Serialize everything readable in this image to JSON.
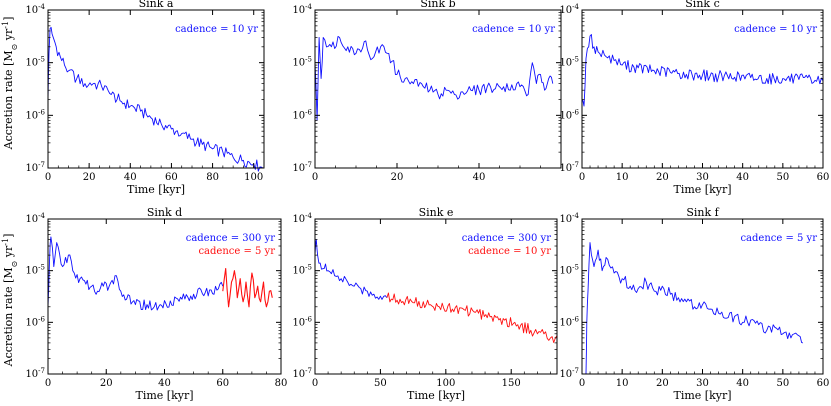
{
  "figure": {
    "ylabel_main": "Accretion rate [M",
    "ylabel_sun": "⊙",
    "ylabel_unit": " yr",
    "ylabel_exp": "-1",
    "ylabel_close": "]"
  },
  "chart_data": [
    {
      "type": "line",
      "title": "Sink a",
      "xlabel": "Time [kyr]",
      "xlim": [
        0,
        105
      ],
      "xticks": [
        0,
        20,
        40,
        60,
        80,
        100
      ],
      "yscale": "log",
      "ylim": [
        1e-07,
        0.0001
      ],
      "legend": [
        {
          "text": "cadence = 10 yr",
          "color": "#1010ff"
        }
      ],
      "series": [
        {
          "color": "#1010ff",
          "x": [
            0,
            0.5,
            1,
            2,
            4,
            6,
            8,
            10,
            14,
            18,
            22,
            26,
            30,
            35,
            40,
            45,
            50,
            55,
            60,
            65,
            70,
            75,
            80,
            85,
            90,
            95,
            100,
            103,
            104.5
          ],
          "y": [
            2e-06,
            1.5e-05,
            4.5e-05,
            3.5e-05,
            2e-05,
            1.3e-05,
            9e-06,
            7e-06,
            5e-06,
            4e-06,
            4e-06,
            3.6e-06,
            2.6e-06,
            1.9e-06,
            1.5e-06,
            1.2e-06,
            9e-07,
            7e-07,
            5.5e-07,
            4.5e-07,
            3.5e-07,
            2.8e-07,
            2.3e-07,
            2e-07,
            1.6e-07,
            1.4e-07,
            1.2e-07,
            1.05e-07,
            1e-07
          ]
        }
      ]
    },
    {
      "type": "line",
      "title": "Sink b",
      "xlabel": "",
      "xlim": [
        0,
        60
      ],
      "xticks": [
        0,
        20,
        40
      ],
      "yscale": "log",
      "ylim": [
        1e-07,
        0.0001
      ],
      "legend": [
        {
          "text": "cadence = 10 yr",
          "color": "#1010ff"
        }
      ],
      "series": [
        {
          "color": "#1010ff",
          "x": [
            0,
            0.5,
            1,
            1.5,
            2,
            4,
            6,
            8,
            10,
            12,
            14,
            16,
            18,
            20,
            22,
            24,
            26,
            28,
            30,
            32,
            34,
            36,
            38,
            40,
            42,
            44,
            46,
            48,
            50,
            52,
            53,
            54,
            55,
            56,
            57,
            58
          ],
          "y": [
            1e-05,
            8e-07,
            3e-05,
            5e-06,
            3e-05,
            2e-05,
            3e-05,
            2e-05,
            1.5e-05,
            2.5e-05,
            1.2e-05,
            2e-05,
            1.5e-05,
            6e-06,
            5e-06,
            4e-06,
            4e-06,
            3e-06,
            2.5e-06,
            3e-06,
            2.5e-06,
            2.8e-06,
            3e-06,
            3e-06,
            3.5e-06,
            3.2e-06,
            3.5e-06,
            3.8e-06,
            3.5e-06,
            2.5e-06,
            1e-05,
            4e-06,
            6e-06,
            3e-06,
            5e-06,
            4e-06
          ]
        }
      ]
    },
    {
      "type": "line",
      "title": "Sink c",
      "xlabel": "Time [kyr]",
      "xlim": [
        0,
        60
      ],
      "xticks": [
        0,
        10,
        20,
        30,
        40,
        50,
        60
      ],
      "yscale": "log",
      "ylim": [
        1e-07,
        0.0001
      ],
      "legend": [
        {
          "text": "cadence = 10 yr",
          "color": "#1010ff"
        }
      ],
      "series": [
        {
          "color": "#1010ff",
          "x": [
            0,
            0.5,
            1,
            2,
            3,
            4,
            6,
            8,
            10,
            14,
            18,
            22,
            26,
            30,
            34,
            38,
            42,
            46,
            50,
            54,
            58,
            60
          ],
          "y": [
            2e-06,
            1.5e-06,
            1.2e-05,
            3.2e-05,
            2e-05,
            1.6e-05,
            1.3e-05,
            1.1e-05,
            9e-06,
            8e-06,
            7e-06,
            6.5e-06,
            6e-06,
            5.8e-06,
            5.5e-06,
            5.3e-06,
            5.2e-06,
            5e-06,
            5e-06,
            4.8e-06,
            4.6e-06,
            4.5e-06
          ]
        }
      ]
    },
    {
      "type": "line",
      "title": "Sink d",
      "xlabel": "Time [kyr]",
      "xlim": [
        0,
        80
      ],
      "xticks": [
        0,
        20,
        40,
        60,
        80
      ],
      "yscale": "log",
      "ylim": [
        1e-07,
        0.0001
      ],
      "legend": [
        {
          "text": "cadence = 300 yr",
          "color": "#1010ff"
        },
        {
          "text": "cadence = 5 yr",
          "color": "#ff1010"
        }
      ],
      "series": [
        {
          "color": "#1010ff",
          "x": [
            0,
            0.5,
            1,
            2,
            3,
            5,
            7,
            9,
            11,
            13,
            15,
            17,
            19,
            21,
            23,
            25,
            27,
            30,
            34,
            38,
            42,
            46,
            50,
            54,
            58,
            60
          ],
          "y": [
            2e-06,
            1.5e-05,
            4.5e-05,
            1.2e-05,
            3.5e-05,
            1.2e-05,
            2e-05,
            9e-06,
            7e-06,
            5.5e-06,
            5e-06,
            4e-06,
            5e-06,
            5e-06,
            8e-06,
            4e-06,
            2.8e-06,
            2.2e-06,
            2.2e-06,
            2e-06,
            2.6e-06,
            2.8e-06,
            3.5e-06,
            3.8e-06,
            4.2e-06,
            5e-06
          ]
        },
        {
          "color": "#ff1010",
          "x": [
            60,
            61,
            62,
            63,
            64,
            65,
            66,
            67,
            68,
            69,
            70,
            71,
            72,
            73,
            74,
            75,
            76,
            77
          ],
          "y": [
            4e-06,
            1.1e-05,
            2e-06,
            6e-06,
            1e-05,
            3e-06,
            7e-06,
            2.5e-06,
            6e-06,
            2e-06,
            9e-06,
            3e-06,
            5e-06,
            2.5e-06,
            6e-06,
            2e-06,
            4e-06,
            3e-06
          ]
        }
      ]
    },
    {
      "type": "line",
      "title": "Sink e",
      "xlabel": "Time [kyr]",
      "xlim": [
        0,
        185
      ],
      "xticks": [
        0,
        50,
        100,
        150
      ],
      "yscale": "log",
      "ylim": [
        1e-07,
        0.0001
      ],
      "legend": [
        {
          "text": "cadence = 300 yr",
          "color": "#1010ff"
        },
        {
          "text": "cadence = 10 yr",
          "color": "#ff1010"
        }
      ],
      "series": [
        {
          "color": "#1010ff",
          "x": [
            0,
            1,
            2,
            4,
            7,
            10,
            15,
            20,
            25,
            30,
            35,
            40,
            45,
            50,
            55
          ],
          "y": [
            2e-05,
            4e-05,
            2e-05,
            1.4e-05,
            1.1e-05,
            1e-05,
            8e-06,
            7e-06,
            6e-06,
            5e-06,
            4.5e-06,
            4e-06,
            3.5e-06,
            3.2e-06,
            3e-06
          ]
        },
        {
          "color": "#ff1010",
          "x": [
            55,
            65,
            75,
            85,
            95,
            105,
            115,
            125,
            135,
            145,
            155,
            165,
            170,
            175,
            180,
            185
          ],
          "y": [
            3e-06,
            2.8e-06,
            2.4e-06,
            2.2e-06,
            2e-06,
            1.8e-06,
            1.7e-06,
            1.5e-06,
            1.3e-06,
            1.1e-06,
            9e-07,
            7e-07,
            6e-07,
            6e-07,
            5e-07,
            5.5e-07
          ]
        }
      ]
    },
    {
      "type": "line",
      "title": "Sink f",
      "xlabel": "Time [kyr]",
      "xlim": [
        0,
        60
      ],
      "xticks": [
        0,
        10,
        20,
        30,
        40,
        50,
        60
      ],
      "yscale": "log",
      "ylim": [
        1e-07,
        0.0001
      ],
      "legend": [
        {
          "text": "cadence = 5 yr",
          "color": "#1010ff"
        }
      ],
      "series": [
        {
          "color": "#1010ff",
          "x": [
            1,
            1.2,
            1.5,
            2,
            3,
            4,
            5,
            6,
            8,
            10,
            12,
            14,
            16,
            18,
            20,
            22,
            24,
            26,
            28,
            30,
            32,
            34,
            36,
            38,
            40,
            42,
            44,
            46,
            48,
            50,
            52,
            54,
            55
          ],
          "y": [
            1e-07,
            1e-06,
            4e-06,
            3.5e-05,
            1.2e-05,
            2.5e-05,
            1e-05,
            1.8e-05,
            9e-06,
            7e-06,
            5e-06,
            4.5e-06,
            6e-06,
            4e-06,
            5e-06,
            3.5e-06,
            3e-06,
            2.5e-06,
            2e-06,
            2.2e-06,
            1.8e-06,
            1.5e-06,
            1.2e-06,
            1.3e-06,
            1e-06,
            1.1e-06,
            9e-07,
            7e-07,
            8e-07,
            6e-07,
            5e-07,
            5.5e-07,
            4e-07
          ]
        }
      ]
    }
  ]
}
